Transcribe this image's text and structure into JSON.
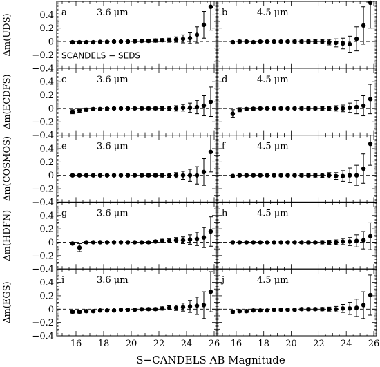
{
  "figure": {
    "xlabel": "S−CANDELS AB Magnitude",
    "annotation": "SCANDELS − SEDS"
  },
  "chart_data": {
    "type": "scatter",
    "layout": "5 rows x 2 columns, shared axes",
    "xlim": [
      14.6,
      26.2
    ],
    "ylim": [
      -0.4,
      0.6
    ],
    "xticks": [
      "16",
      "18",
      "20",
      "22",
      "24",
      "26"
    ],
    "yticks": [
      "−0.4",
      "−0.2",
      "0",
      "0.2",
      "0.4"
    ],
    "reference_line": 0,
    "xlabel": "S−CANDELS AB Magnitude",
    "columns": [
      {
        "name": "3.6 μm",
        "letter_prefix": ""
      },
      {
        "name": "4.5 μm"
      }
    ],
    "rows": [
      {
        "ylabel": "Δm(UDS)",
        "panels": [
          {
            "letter": "a",
            "label": "3.6 μm",
            "x": [
              15.75,
              16.25,
              16.75,
              17.25,
              17.75,
              18.25,
              18.75,
              19.25,
              19.75,
              20.25,
              20.75,
              21.25,
              21.75,
              22.25,
              22.75,
              23.25,
              23.75,
              24.25,
              24.75,
              25.25,
              25.75
            ],
            "y": [
              -0.01,
              -0.01,
              -0.01,
              -0.01,
              -0.005,
              -0.005,
              0.0,
              0.0,
              0.0,
              0.005,
              0.01,
              0.01,
              0.015,
              0.02,
              0.02,
              0.03,
              0.04,
              0.05,
              0.1,
              0.25,
              0.52
            ],
            "err": [
              0.015,
              0.015,
              0.015,
              0.015,
              0.015,
              0.015,
              0.015,
              0.015,
              0.015,
              0.02,
              0.02,
              0.02,
              0.025,
              0.025,
              0.03,
              0.04,
              0.06,
              0.08,
              0.12,
              0.2,
              0.35
            ]
          },
          {
            "letter": "b",
            "label": "4.5 μm",
            "x": [
              15.75,
              16.25,
              16.75,
              17.25,
              17.75,
              18.25,
              18.75,
              19.25,
              19.75,
              20.25,
              20.75,
              21.25,
              21.75,
              22.25,
              22.75,
              23.25,
              23.75,
              24.25,
              24.75,
              25.25,
              25.75
            ],
            "y": [
              -0.01,
              0.0,
              0.0,
              -0.01,
              0.0,
              0.0,
              0.0,
              0.0,
              0.0,
              0.0,
              0.0,
              0.0,
              0.0,
              0.0,
              -0.01,
              -0.02,
              -0.03,
              -0.04,
              0.04,
              0.24,
              0.58
            ],
            "err": [
              0.015,
              0.02,
              0.015,
              0.015,
              0.015,
              0.015,
              0.015,
              0.015,
              0.015,
              0.02,
              0.02,
              0.02,
              0.025,
              0.03,
              0.04,
              0.06,
              0.08,
              0.12,
              0.18,
              0.28,
              0.38
            ]
          }
        ]
      },
      {
        "ylabel": "Δm(ECDFS)",
        "panels": [
          {
            "letter": "c",
            "label": "3.6 μm",
            "x": [
              15.75,
              16.25,
              16.75,
              17.25,
              17.75,
              18.25,
              18.75,
              19.25,
              19.75,
              20.25,
              20.75,
              21.25,
              21.75,
              22.25,
              22.75,
              23.25,
              23.75,
              24.25,
              24.75,
              25.25,
              25.75
            ],
            "y": [
              -0.05,
              -0.03,
              -0.02,
              -0.01,
              -0.01,
              -0.005,
              0.0,
              0.0,
              0.0,
              0.0,
              0.0,
              0.0,
              0.0,
              0.0,
              0.0,
              0.0,
              0.01,
              0.01,
              0.02,
              0.04,
              0.1
            ],
            "err": [
              0.03,
              0.03,
              0.025,
              0.02,
              0.02,
              0.02,
              0.015,
              0.015,
              0.015,
              0.015,
              0.02,
              0.02,
              0.02,
              0.025,
              0.03,
              0.04,
              0.05,
              0.07,
              0.1,
              0.15,
              0.22
            ]
          },
          {
            "letter": "d",
            "label": "4.5 μm",
            "x": [
              15.75,
              16.25,
              16.75,
              17.25,
              17.75,
              18.25,
              18.75,
              19.25,
              19.75,
              20.25,
              20.75,
              21.25,
              21.75,
              22.25,
              22.75,
              23.25,
              23.75,
              24.25,
              24.75,
              25.25,
              25.75
            ],
            "y": [
              -0.08,
              -0.02,
              -0.01,
              -0.005,
              0.0,
              0.0,
              0.0,
              0.0,
              0.0,
              0.0,
              0.0,
              0.0,
              0.0,
              0.0,
              0.0,
              0.0,
              0.0,
              0.01,
              0.02,
              0.04,
              0.14
            ],
            "err": [
              0.06,
              0.03,
              0.02,
              0.02,
              0.015,
              0.015,
              0.015,
              0.015,
              0.015,
              0.015,
              0.02,
              0.02,
              0.02,
              0.025,
              0.03,
              0.04,
              0.05,
              0.07,
              0.1,
              0.15,
              0.22
            ]
          }
        ]
      },
      {
        "ylabel": "Δm(COSMOS)",
        "panels": [
          {
            "letter": "e",
            "label": "3.6 μm",
            "x": [
              15.75,
              16.25,
              16.75,
              17.25,
              17.75,
              18.25,
              18.75,
              19.25,
              19.75,
              20.25,
              20.75,
              21.25,
              21.75,
              22.25,
              22.75,
              23.25,
              23.75,
              24.25,
              24.75,
              25.25,
              25.75
            ],
            "y": [
              0.0,
              0.0,
              0.0,
              0.0,
              0.0,
              0.0,
              0.0,
              0.0,
              0.0,
              0.0,
              0.0,
              0.0,
              0.0,
              0.0,
              0.0,
              0.0,
              0.0,
              0.0,
              0.0,
              0.05,
              0.35
            ],
            "err": [
              0.015,
              0.015,
              0.015,
              0.015,
              0.015,
              0.015,
              0.015,
              0.015,
              0.015,
              0.015,
              0.02,
              0.02,
              0.02,
              0.025,
              0.03,
              0.04,
              0.06,
              0.09,
              0.13,
              0.2,
              0.3
            ]
          },
          {
            "letter": "f",
            "label": "4.5 μm",
            "x": [
              15.75,
              16.25,
              16.75,
              17.25,
              17.75,
              18.25,
              18.75,
              19.25,
              19.75,
              20.25,
              20.75,
              21.25,
              21.75,
              22.25,
              22.75,
              23.25,
              23.75,
              24.25,
              24.75,
              25.25,
              25.75
            ],
            "y": [
              -0.01,
              0.0,
              0.0,
              0.0,
              0.0,
              0.0,
              0.0,
              0.0,
              0.0,
              0.0,
              0.0,
              0.0,
              0.0,
              0.0,
              0.0,
              -0.01,
              -0.01,
              0.0,
              0.0,
              0.1,
              0.47
            ],
            "err": [
              0.015,
              0.015,
              0.015,
              0.015,
              0.015,
              0.015,
              0.015,
              0.015,
              0.015,
              0.015,
              0.02,
              0.02,
              0.025,
              0.03,
              0.04,
              0.05,
              0.08,
              0.11,
              0.15,
              0.22,
              0.32
            ]
          }
        ]
      },
      {
        "ylabel": "Δm(HDFN)",
        "panels": [
          {
            "letter": "g",
            "label": "3.6 μm",
            "x": [
              15.75,
              16.25,
              16.75,
              17.25,
              17.75,
              18.25,
              18.75,
              19.25,
              19.75,
              20.25,
              20.75,
              21.25,
              21.75,
              22.25,
              22.75,
              23.25,
              23.75,
              24.25,
              24.75,
              25.25,
              25.75
            ],
            "y": [
              -0.02,
              -0.08,
              0.0,
              0.0,
              0.0,
              0.0,
              0.0,
              0.0,
              0.0,
              0.0,
              0.0,
              0.0,
              0.01,
              0.02,
              0.02,
              0.03,
              0.03,
              0.04,
              0.05,
              0.07,
              0.16
            ],
            "err": [
              0.02,
              0.06,
              0.02,
              0.015,
              0.015,
              0.015,
              0.015,
              0.015,
              0.015,
              0.015,
              0.02,
              0.02,
              0.02,
              0.025,
              0.03,
              0.04,
              0.05,
              0.07,
              0.1,
              0.15,
              0.22
            ]
          },
          {
            "letter": "h",
            "label": "4.5 μm",
            "x": [
              15.75,
              16.25,
              16.75,
              17.25,
              17.75,
              18.25,
              18.75,
              19.25,
              19.75,
              20.25,
              20.75,
              21.25,
              21.75,
              22.25,
              22.75,
              23.25,
              23.75,
              24.25,
              24.75,
              25.25,
              25.75
            ],
            "y": [
              0.0,
              0.0,
              0.0,
              0.0,
              0.0,
              0.0,
              0.0,
              0.0,
              0.0,
              0.0,
              0.0,
              0.0,
              0.0,
              0.0,
              0.0,
              0.0,
              0.01,
              0.01,
              0.02,
              0.03,
              0.09
            ],
            "err": [
              0.015,
              0.015,
              0.015,
              0.015,
              0.015,
              0.015,
              0.015,
              0.015,
              0.015,
              0.015,
              0.02,
              0.02,
              0.02,
              0.025,
              0.03,
              0.035,
              0.045,
              0.06,
              0.09,
              0.13,
              0.2
            ]
          }
        ]
      },
      {
        "ylabel": "Δm(EGS)",
        "panels": [
          {
            "letter": "i",
            "label": "3.6 μm",
            "x": [
              15.75,
              16.25,
              16.75,
              17.25,
              17.75,
              18.25,
              18.75,
              19.25,
              19.75,
              20.25,
              20.75,
              21.25,
              21.75,
              22.25,
              22.75,
              23.25,
              23.75,
              24.25,
              24.75,
              25.25,
              25.75
            ],
            "y": [
              -0.04,
              -0.04,
              -0.03,
              -0.03,
              -0.02,
              -0.02,
              -0.02,
              -0.01,
              -0.01,
              -0.01,
              0.0,
              0.0,
              0.0,
              0.01,
              0.02,
              0.02,
              0.03,
              0.04,
              0.05,
              0.06,
              0.26
            ],
            "err": [
              0.02,
              0.02,
              0.02,
              0.02,
              0.015,
              0.015,
              0.015,
              0.015,
              0.015,
              0.015,
              0.02,
              0.02,
              0.02,
              0.025,
              0.03,
              0.04,
              0.06,
              0.09,
              0.13,
              0.2,
              0.3
            ]
          },
          {
            "letter": "j",
            "label": "4.5 μm",
            "x": [
              15.75,
              16.25,
              16.75,
              17.25,
              17.75,
              18.25,
              18.75,
              19.25,
              19.75,
              20.25,
              20.75,
              21.25,
              21.75,
              22.25,
              22.75,
              23.25,
              23.75,
              24.25,
              24.75,
              25.25,
              25.75
            ],
            "y": [
              -0.04,
              -0.03,
              -0.03,
              -0.02,
              -0.02,
              -0.02,
              -0.01,
              -0.01,
              -0.01,
              -0.01,
              0.0,
              0.0,
              0.0,
              0.0,
              0.0,
              0.0,
              0.01,
              0.01,
              0.02,
              0.06,
              0.21
            ],
            "err": [
              0.02,
              0.02,
              0.02,
              0.02,
              0.015,
              0.015,
              0.015,
              0.015,
              0.015,
              0.015,
              0.02,
              0.02,
              0.02,
              0.025,
              0.03,
              0.04,
              0.06,
              0.09,
              0.13,
              0.2,
              0.3
            ]
          }
        ]
      }
    ]
  }
}
